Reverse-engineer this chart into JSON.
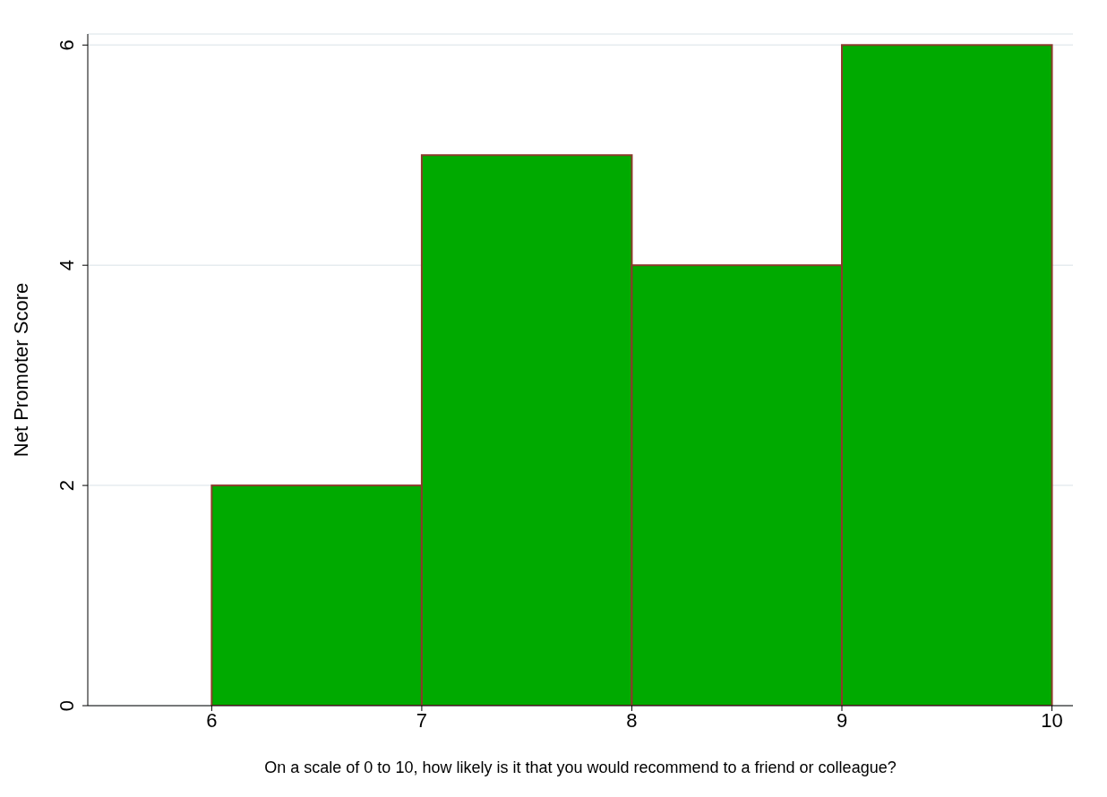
{
  "chart_data": {
    "type": "histogram",
    "xlabel": "On a scale of 0 to 10, how likely is it that you would recommend to a friend or colleague?",
    "ylabel": "Net Promoter Score",
    "bins": [
      6,
      7,
      8,
      9,
      10
    ],
    "values": [
      2,
      5,
      4,
      6
    ],
    "color": "#00aa00",
    "xlim": [
      5.41,
      10.1
    ],
    "xticks": [
      6,
      7,
      8,
      9,
      10
    ],
    "ylim": [
      0,
      6.1
    ],
    "yticks": [
      0,
      2,
      4,
      6
    ],
    "grid": "y"
  }
}
